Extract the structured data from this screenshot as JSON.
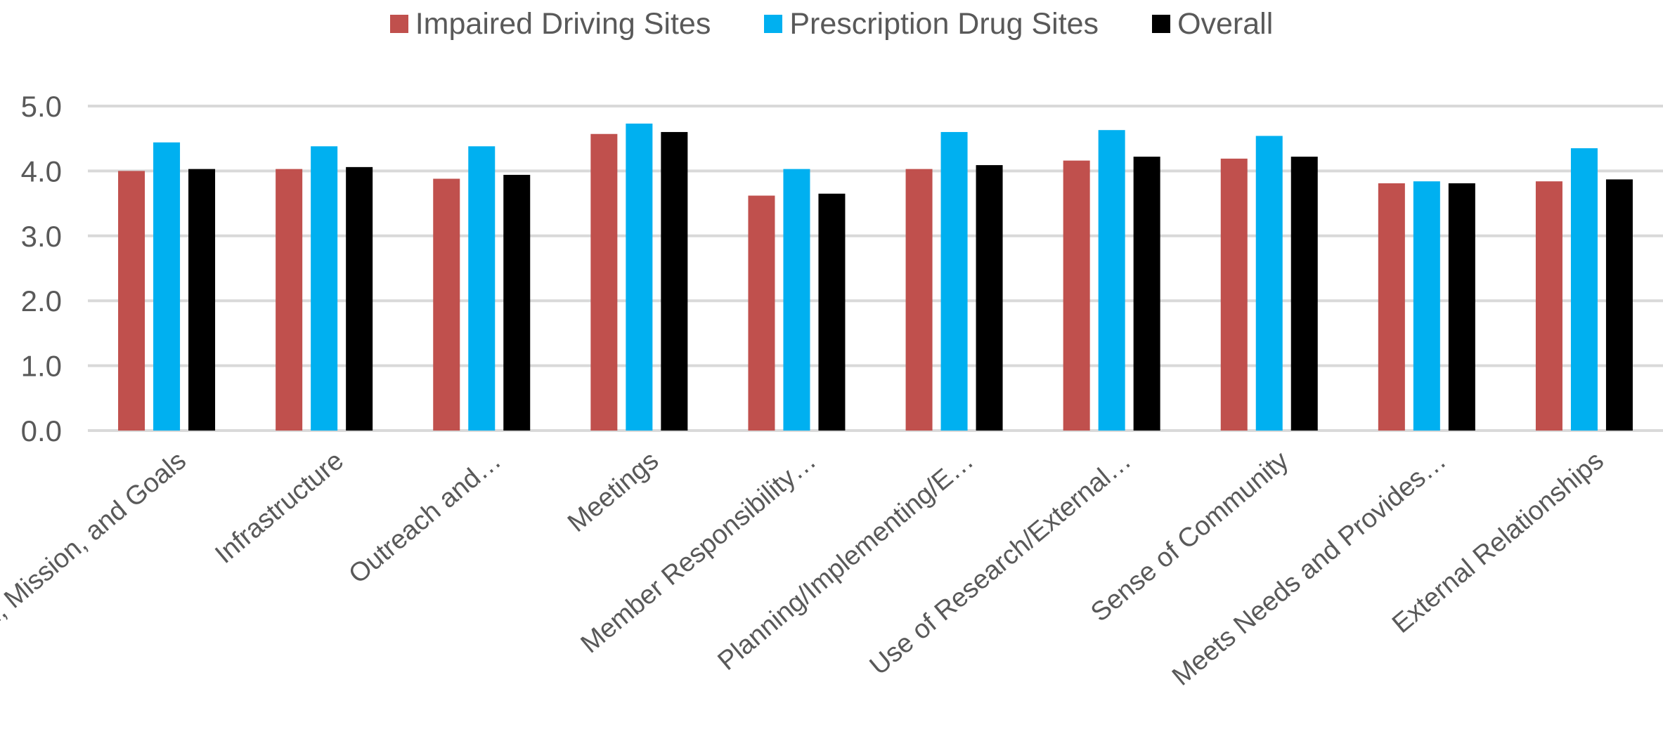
{
  "chart_data": {
    "type": "bar",
    "title": "",
    "xlabel": "",
    "ylabel": "",
    "ylim": [
      0,
      5
    ],
    "yticks": [
      "0.0",
      "1.0",
      "2.0",
      "3.0",
      "4.0",
      "5.0"
    ],
    "grid": true,
    "legend_position": "top-center",
    "categories": [
      "Vision, Mission, and Goals",
      "Infrastructure",
      "Outreach and…",
      "Meetings",
      "Member Responsibility…",
      "Planning/Implementing/E…",
      "Use of Research/External…",
      "Sense of Community",
      "Meets Needs and Provides…",
      "External Relationships"
    ],
    "series": [
      {
        "name": "Impaired Driving Sites",
        "color": "#C0504D",
        "values": [
          4.0,
          4.03,
          3.88,
          4.57,
          3.62,
          4.03,
          4.16,
          4.19,
          3.81,
          3.84
        ]
      },
      {
        "name": "Prescription Drug Sites",
        "color": "#00B0F0",
        "values": [
          4.44,
          4.38,
          4.38,
          4.73,
          4.03,
          4.6,
          4.63,
          4.54,
          3.84,
          4.35
        ]
      },
      {
        "name": "Overall",
        "color": "#000000",
        "values": [
          4.03,
          4.06,
          3.94,
          4.6,
          3.65,
          4.09,
          4.22,
          4.22,
          3.81,
          3.87
        ]
      }
    ]
  }
}
